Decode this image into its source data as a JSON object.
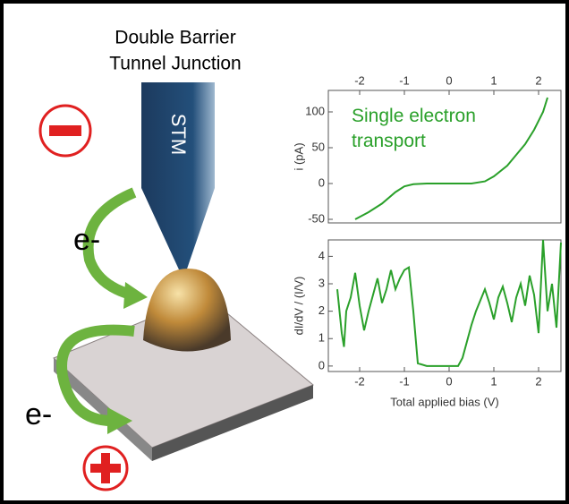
{
  "illustration": {
    "heading": [
      "Double Barrier",
      "Tunnel Junction"
    ],
    "tip_label": "STM",
    "electron_labels": [
      "e-",
      "e-"
    ]
  },
  "chart_data": [
    {
      "type": "line",
      "y_label": "i (pA)",
      "annotation": "Single electron transport",
      "x": [
        -2.1,
        -1.8,
        -1.5,
        -1.2,
        -1.0,
        -0.8,
        -0.5,
        0,
        0.5,
        0.8,
        1.0,
        1.3,
        1.5,
        1.7,
        1.9,
        2.1,
        2.2
      ],
      "series": [
        {
          "name": "i",
          "color": "#2aa02a",
          "values": [
            -50,
            -40,
            -28,
            -12,
            -4,
            -1,
            0,
            0,
            0,
            3,
            10,
            25,
            40,
            55,
            75,
            100,
            120
          ]
        }
      ],
      "xlim": [
        -2.7,
        2.5
      ],
      "ylim": [
        -55,
        130
      ],
      "xticks": [
        -2,
        -1,
        0,
        1,
        2
      ],
      "yticks": [
        -50,
        0,
        50,
        100
      ],
      "x_tick_side": "top"
    },
    {
      "type": "line",
      "x_label": "Total applied bias (V)",
      "y_label": "dI/dV / (I/V)",
      "x": [
        -2.5,
        -2.4,
        -2.35,
        -2.3,
        -2.2,
        -2.1,
        -2.0,
        -1.9,
        -1.8,
        -1.6,
        -1.5,
        -1.4,
        -1.3,
        -1.2,
        -1.1,
        -1.0,
        -0.9,
        -0.8,
        -0.7,
        -0.5,
        0,
        0.2,
        0.3,
        0.5,
        0.6,
        0.8,
        0.9,
        1.0,
        1.1,
        1.2,
        1.3,
        1.4,
        1.5,
        1.6,
        1.7,
        1.8,
        1.9,
        2.0,
        2.1,
        2.2,
        2.3,
        2.4,
        2.5
      ],
      "series": [
        {
          "name": "dI/dV",
          "color": "#2aa02a",
          "values": [
            2.8,
            1.2,
            0.7,
            2.0,
            2.5,
            3.4,
            2.2,
            1.3,
            2.0,
            3.2,
            2.3,
            2.8,
            3.5,
            2.8,
            3.2,
            3.5,
            3.6,
            2.0,
            0.1,
            0.0,
            0.0,
            0.0,
            0.3,
            1.5,
            2.0,
            2.8,
            2.3,
            1.7,
            2.5,
            2.9,
            2.3,
            1.6,
            2.5,
            3.0,
            2.2,
            3.3,
            2.6,
            1.2,
            4.6,
            2.0,
            3.0,
            1.4,
            4.5
          ]
        }
      ],
      "xlim": [
        -2.7,
        2.5
      ],
      "ylim": [
        -0.2,
        4.6
      ],
      "xticks": [
        -2,
        -1,
        0,
        1,
        2
      ],
      "yticks": [
        0,
        1,
        2,
        3,
        4
      ],
      "x_tick_side": "bottom"
    }
  ]
}
